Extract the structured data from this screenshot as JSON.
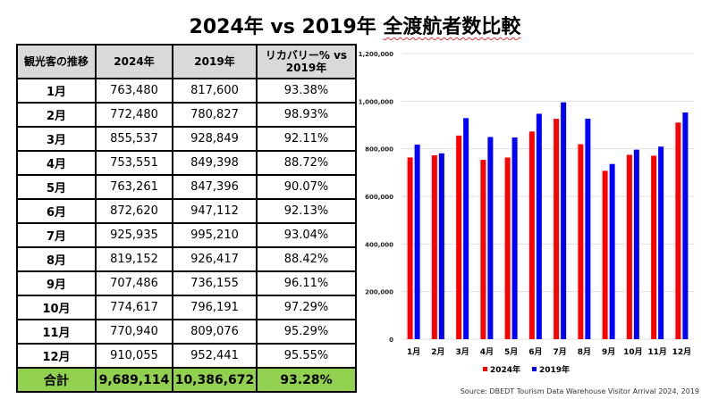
{
  "title": {
    "main": "2024年 vs 2019年 ",
    "underlined": "全渡航者数比較"
  },
  "table": {
    "headers": [
      "観光客の推移",
      "2024年",
      "2019年",
      "リカバリー% vs 2019年"
    ],
    "rows": [
      [
        "1月",
        "763,480",
        "817,600",
        "93.38%"
      ],
      [
        "2月",
        "772,480",
        "780,827",
        "98.93%"
      ],
      [
        "3月",
        "855,537",
        "928,849",
        "92.11%"
      ],
      [
        "4月",
        "753,551",
        "849,398",
        "88.72%"
      ],
      [
        "5月",
        "763,261",
        "847,396",
        "90.07%"
      ],
      [
        "6月",
        "872,620",
        "947,112",
        "92.13%"
      ],
      [
        "7月",
        "925,935",
        "995,210",
        "93.04%"
      ],
      [
        "8月",
        "819,152",
        "926,417",
        "88.42%"
      ],
      [
        "9月",
        "707,486",
        "736,155",
        "96.11%"
      ],
      [
        "10月",
        "774,617",
        "796,191",
        "97.29%"
      ],
      [
        "11月",
        "770,940",
        "809,076",
        "95.29%"
      ],
      [
        "12月",
        "910,055",
        "952,441",
        "95.55%"
      ]
    ],
    "total": [
      "合計",
      "9,689,114",
      "10,386,672",
      "93.28%"
    ]
  },
  "chart_data": {
    "type": "bar",
    "categories": [
      "1月",
      "2月",
      "3月",
      "4月",
      "5月",
      "6月",
      "7月",
      "8月",
      "9月",
      "10月",
      "11月",
      "12月"
    ],
    "series": [
      {
        "name": "2024年",
        "color": "#ff0000",
        "values": [
          763480,
          772480,
          855537,
          753551,
          763261,
          872620,
          925935,
          819152,
          707486,
          774617,
          770940,
          910055
        ]
      },
      {
        "name": "2019年",
        "color": "#0000ff",
        "values": [
          817600,
          780827,
          928849,
          849398,
          847396,
          947112,
          995210,
          926417,
          736155,
          796191,
          809076,
          952441
        ]
      }
    ],
    "ylim": [
      0,
      1200000
    ],
    "yticks": [
      "0",
      "200,000",
      "400,000",
      "600,000",
      "800,000",
      "1,000,000",
      "1,200,000"
    ],
    "grid": true,
    "legend": "bottom"
  },
  "source": "Source: DBEDT Tourism Data Warehouse Visitor Arrival 2024, 2019"
}
